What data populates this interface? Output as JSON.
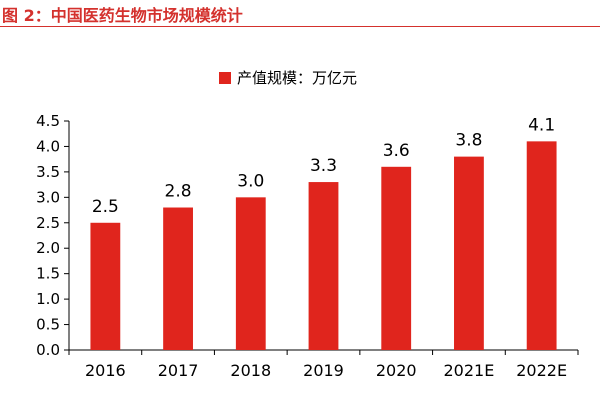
{
  "figure": {
    "title": "图 2：中国医药生物市场规模统计"
  },
  "chart_data": {
    "type": "bar",
    "categories": [
      "2016",
      "2017",
      "2018",
      "2019",
      "2020",
      "2021E",
      "2022E"
    ],
    "series": [
      {
        "name": "产值规模：万亿元",
        "values": [
          2.5,
          2.8,
          3.0,
          3.3,
          3.6,
          3.8,
          4.1
        ],
        "labels": [
          "2.5",
          "2.8",
          "3.0",
          "3.3",
          "3.6",
          "3.8",
          "4.1"
        ],
        "color": "#e0251d"
      }
    ],
    "yticks": [
      "0.0",
      "0.5",
      "1.0",
      "1.5",
      "2.0",
      "2.5",
      "3.0",
      "3.5",
      "4.0",
      "4.5"
    ],
    "ylim": [
      0,
      4.5
    ],
    "xlabel": "",
    "ylabel": "",
    "grid": false,
    "legend_position": "top-center",
    "axis_color": "#000000"
  }
}
